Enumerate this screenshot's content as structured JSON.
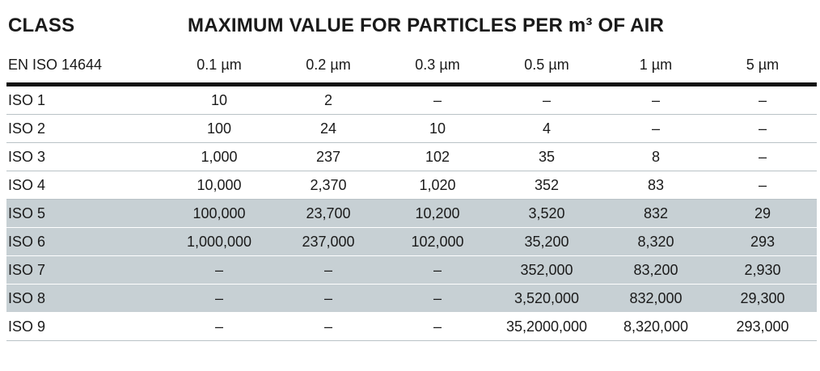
{
  "titles": {
    "class": "CLASS",
    "main": "MAXIMUM VALUE FOR PARTICLES PER m³ OF AIR"
  },
  "table": {
    "headers": [
      "EN ISO 14644",
      "0.1 µm",
      "0.2 µm",
      "0.3 µm",
      "0.5 µm",
      "1 µm",
      "5 µm"
    ],
    "rows": [
      {
        "cells": [
          "ISO 1",
          "10",
          "2",
          "–",
          "–",
          "–",
          "–"
        ],
        "shaded": false
      },
      {
        "cells": [
          "ISO 2",
          "100",
          "24",
          "10",
          "4",
          "–",
          "–"
        ],
        "shaded": false
      },
      {
        "cells": [
          "ISO 3",
          "1,000",
          "237",
          "102",
          "35",
          "8",
          "–"
        ],
        "shaded": false
      },
      {
        "cells": [
          "ISO 4",
          "10,000",
          "2,370",
          "1,020",
          "352",
          "83",
          "–"
        ],
        "shaded": false
      },
      {
        "cells": [
          "ISO 5",
          "100,000",
          "23,700",
          "10,200",
          "3,520",
          "832",
          "29"
        ],
        "shaded": true
      },
      {
        "cells": [
          "ISO 6",
          "1,000,000",
          "237,000",
          "102,000",
          "35,200",
          "8,320",
          "293"
        ],
        "shaded": true
      },
      {
        "cells": [
          "ISO 7",
          "–",
          "–",
          "–",
          "352,000",
          "83,200",
          "2,930"
        ],
        "shaded": true
      },
      {
        "cells": [
          "ISO 8",
          "–",
          "–",
          "–",
          "3,520,000",
          "832,000",
          "29,300"
        ],
        "shaded": true
      },
      {
        "cells": [
          "ISO 9",
          "–",
          "–",
          "–",
          "35,2000,000",
          "8,320,000",
          "293,000"
        ],
        "shaded": false
      }
    ]
  },
  "colors": {
    "shade": "#c7d0d4",
    "rule": "#111111"
  }
}
